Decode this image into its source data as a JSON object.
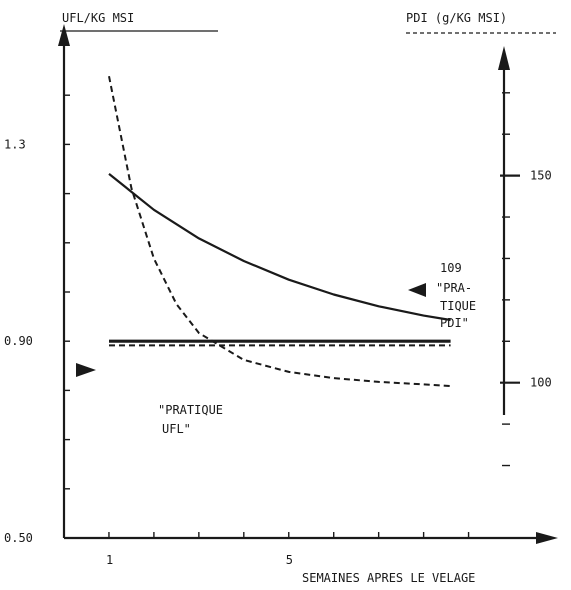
{
  "chart_data": {
    "type": "line",
    "left_axis_title": "UFL/KG MSI",
    "right_axis_title": "PDI (g/KG MSI)",
    "xlabel": "SEMAINES APRES LE VELAGE",
    "x_ticks": [
      1,
      5
    ],
    "x_tick_labels": [
      "1",
      "5"
    ],
    "xlim": [
      0,
      10.5
    ],
    "left_ticks": [
      1.3,
      0.9,
      0.5
    ],
    "left_tick_labels": [
      "1.3",
      "0.90",
      "0.50"
    ],
    "left_ylim": [
      0.5,
      1.5
    ],
    "right_ticks": [
      150,
      100
    ],
    "right_tick_labels": [
      "150",
      "100"
    ],
    "right_ylim": [
      62.5,
      181.3
    ],
    "grid": false,
    "series": [
      {
        "axis": "left",
        "style": "solid",
        "x": [
          1,
          2,
          3,
          4,
          5,
          6,
          7,
          8,
          8.6
        ],
        "y": [
          1.24,
          1.167,
          1.109,
          1.063,
          1.025,
          0.995,
          0.971,
          0.952,
          0.943
        ]
      },
      {
        "axis": "right",
        "style": "dashed",
        "x": [
          1,
          1.5,
          2,
          2.5,
          3,
          4,
          5,
          6,
          7,
          8,
          8.6
        ],
        "y": [
          174,
          147,
          130,
          119,
          112,
          105.5,
          102.6,
          101.1,
          100.2,
          99.6,
          99.2
        ]
      },
      {
        "axis": "right",
        "style": "dashed",
        "x": [
          1,
          8.6
        ],
        "y": [
          109,
          109
        ]
      },
      {
        "axis": "left",
        "style": "solid-thick",
        "x": [
          1,
          8.6
        ],
        "y": [
          0.9,
          0.9
        ]
      }
    ],
    "annotations": {
      "ufl_marker_value": "0.90",
      "pdi_marker_value": "109",
      "pdi_practice_lines": [
        "\"PRA-",
        "TIQUE",
        "PDI\""
      ],
      "ufl_practice_lines": [
        "\"PRATIQUE",
        "UFL\""
      ]
    }
  },
  "colors": {
    "ink": "#1a1a1a",
    "background": "#ffffff"
  }
}
